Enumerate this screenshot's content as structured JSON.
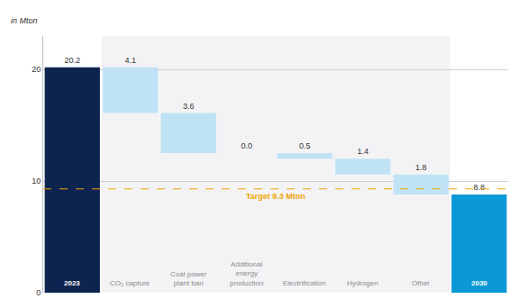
{
  "chart_data": {
    "type": "waterfall",
    "y_label": "in Mton",
    "categories": [
      "2023",
      "CO₂ capture",
      "Coal power plant ban",
      "Additional energy production",
      "Electrification",
      "Hydrogen",
      "Other",
      "2030"
    ],
    "values": [
      20.2,
      4.1,
      3.6,
      0.0,
      0.5,
      1.4,
      1.8,
      8.8
    ],
    "value_labels": [
      "20.2",
      "4.1",
      "3.6",
      "0.0",
      "0.5",
      "1.4",
      "1.8",
      "8.8"
    ],
    "colors": [
      "#0d2350",
      "#bfe3f5",
      "#bfe3f5",
      "#bfe3f5",
      "#bfe3f5",
      "#bfe3f5",
      "#bfe3f5",
      "#0a99d6"
    ],
    "target": {
      "value": 9.3,
      "label": "Target 9.3 Mton",
      "color": "#f0a500"
    },
    "ylim": [
      0,
      23
    ],
    "yticks": [
      0,
      10,
      20
    ],
    "grid": true,
    "data_labels": true
  }
}
